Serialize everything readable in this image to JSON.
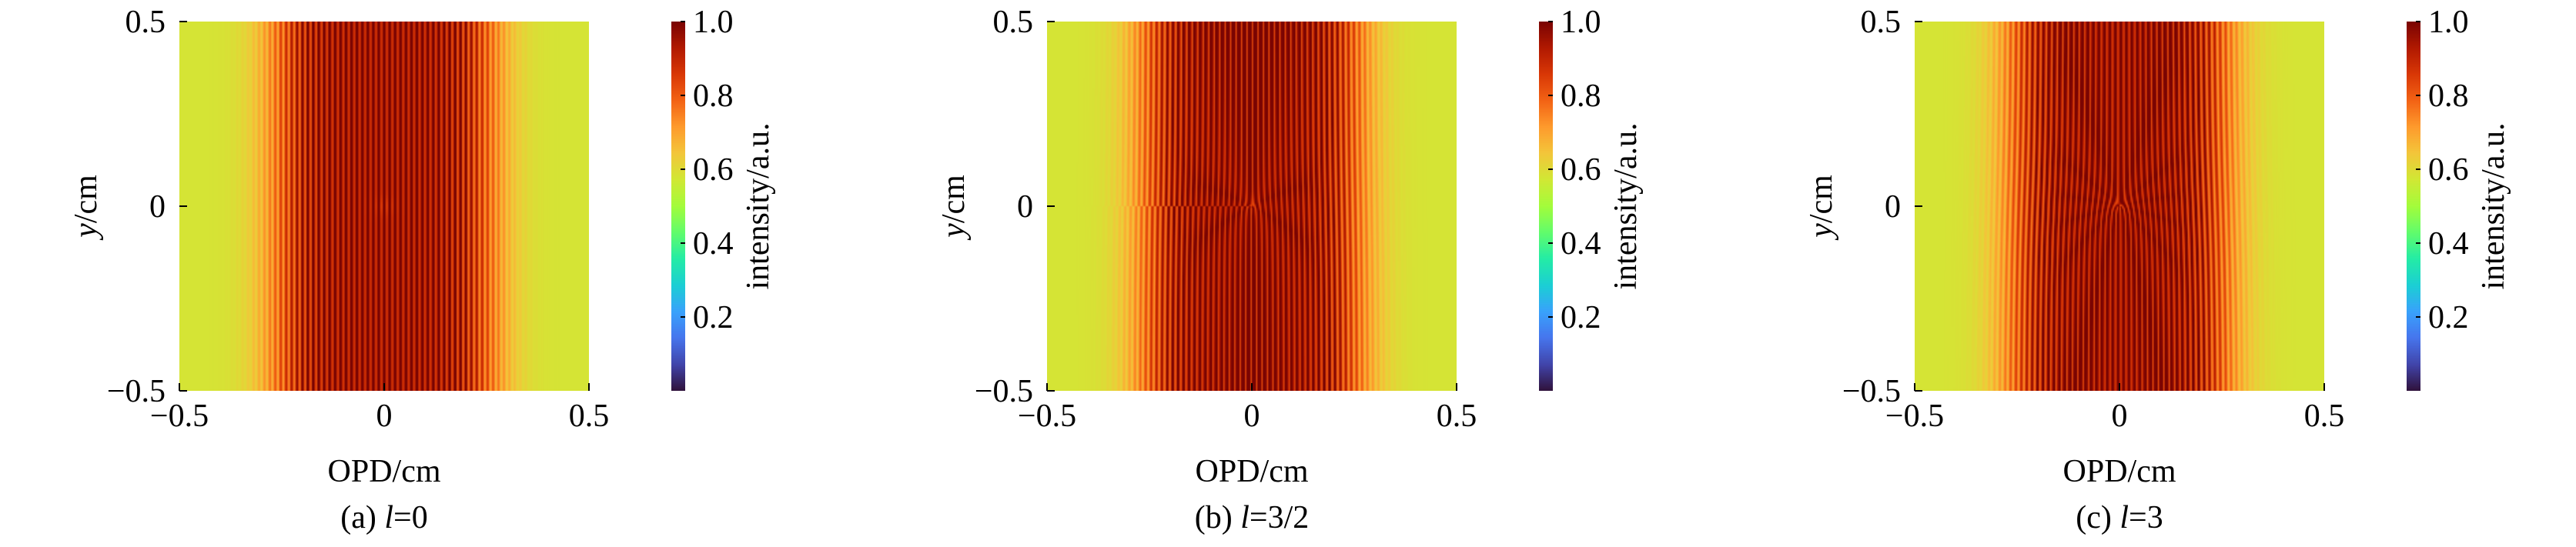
{
  "chart_data": [
    {
      "type": "heatmap",
      "panel_label": "(a)",
      "caption_var": "l",
      "caption_value": "=0",
      "topological_charge": 0,
      "xlabel": "OPD/cm",
      "ylabel_var": "y",
      "ylabel_unit": "/cm",
      "xlim": [
        -0.5,
        0.5
      ],
      "ylim": [
        -0.5,
        0.5
      ],
      "xticks": [
        -0.5,
        0,
        0.5
      ],
      "yticks": [
        -0.5,
        0,
        0.5
      ],
      "xtick_labels": [
        "−0.5",
        "0",
        "0.5"
      ],
      "ytick_labels": [
        "−0.5",
        "0",
        "0.5"
      ],
      "colorbar": {
        "label": "intensity/a.u.",
        "range": [
          0,
          1
        ],
        "ticks": [
          0.2,
          0.4,
          0.6,
          0.8,
          1.0
        ],
        "tick_labels": [
          "0.2",
          "0.4",
          "0.6",
          "0.8",
          "1.0"
        ]
      },
      "fringe_period_cm": 0.0133,
      "envelope_width_cm": 0.27,
      "background_level": 0.58
    },
    {
      "type": "heatmap",
      "panel_label": "(b)",
      "caption_var": "l",
      "caption_value": "=3/2",
      "topological_charge": 1.5,
      "xlabel": "OPD/cm",
      "ylabel_var": "y",
      "ylabel_unit": "/cm",
      "xlim": [
        -0.5,
        0.5
      ],
      "ylim": [
        -0.5,
        0.5
      ],
      "xticks": [
        -0.5,
        0,
        0.5
      ],
      "yticks": [
        -0.5,
        0,
        0.5
      ],
      "xtick_labels": [
        "−0.5",
        "0",
        "0.5"
      ],
      "ytick_labels": [
        "−0.5",
        "0",
        "0.5"
      ],
      "colorbar": {
        "label": "intensity/a.u.",
        "range": [
          0,
          1
        ],
        "ticks": [
          0.2,
          0.4,
          0.6,
          0.8,
          1.0
        ],
        "tick_labels": [
          "0.2",
          "0.4",
          "0.6",
          "0.8",
          "1.0"
        ]
      },
      "fringe_period_cm": 0.0133,
      "envelope_width_cm": 0.27,
      "background_level": 0.58
    },
    {
      "type": "heatmap",
      "panel_label": "(c)",
      "caption_var": "l",
      "caption_value": "=3",
      "topological_charge": 3,
      "xlabel": "OPD/cm",
      "ylabel_var": "y",
      "ylabel_unit": "/cm",
      "xlim": [
        -0.5,
        0.5
      ],
      "ylim": [
        -0.5,
        0.5
      ],
      "xticks": [
        -0.5,
        0,
        0.5
      ],
      "yticks": [
        -0.5,
        0,
        0.5
      ],
      "xtick_labels": [
        "−0.5",
        "0",
        "0.5"
      ],
      "ytick_labels": [
        "−0.5",
        "0",
        "0.5"
      ],
      "colorbar": {
        "label": "intensity/a.u.",
        "range": [
          0,
          1
        ],
        "ticks": [
          0.2,
          0.4,
          0.6,
          0.8,
          1.0
        ],
        "tick_labels": [
          "0.2",
          "0.4",
          "0.6",
          "0.8",
          "1.0"
        ]
      },
      "fringe_period_cm": 0.0133,
      "envelope_width_cm": 0.27,
      "background_level": 0.58
    }
  ],
  "colormap": [
    "#30123b",
    "#4145ab",
    "#4675ed",
    "#39a2fc",
    "#1bcfd4",
    "#24eca6",
    "#61fc6c",
    "#a4fc3b",
    "#d1e834",
    "#f3c63a",
    "#fe9b2d",
    "#f36315",
    "#d93806",
    "#b11901",
    "#7a0402"
  ]
}
